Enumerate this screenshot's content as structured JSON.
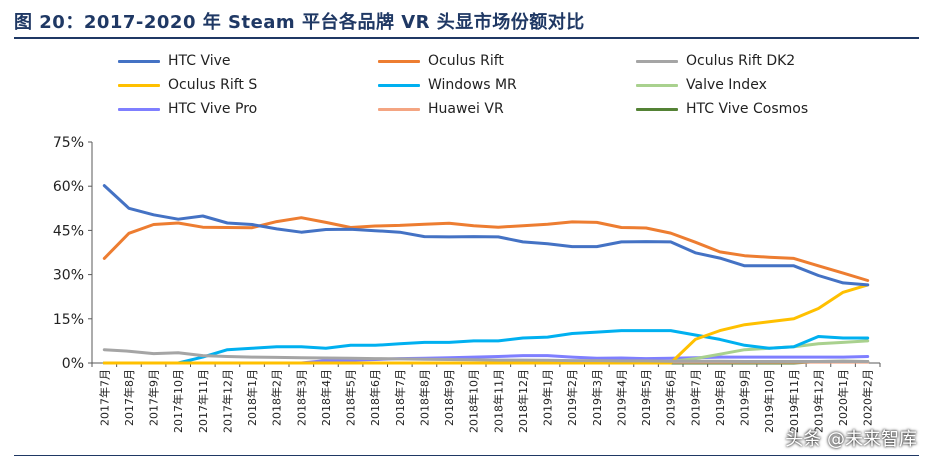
{
  "header": {
    "title": "图 20：2017-2020 年 Steam 平台各品牌 VR 头显市场份额对比"
  },
  "watermark": "头条 @未来智库",
  "chart_data": {
    "type": "line",
    "title": "2017-2020 年 Steam 平台各品牌 VR 头显市场份额对比",
    "xlabel": "",
    "ylabel": "",
    "ylim": [
      0,
      75
    ],
    "yticks": [
      "0%",
      "15%",
      "30%",
      "45%",
      "60%",
      "75%"
    ],
    "ytick_values": [
      0,
      15,
      30,
      45,
      60,
      75
    ],
    "grid": false,
    "legend_position": "top",
    "categories": [
      "2017年7月",
      "2017年8月",
      "2017年9月",
      "2017年10月",
      "2017年11月",
      "2017年12月",
      "2018年1月",
      "2018年2月",
      "2018年3月",
      "2018年4月",
      "2018年5月",
      "2018年6月",
      "2018年7月",
      "2018年8月",
      "2018年9月",
      "2018年10月",
      "2018年11月",
      "2018年12月",
      "2019年1月",
      "2019年2月",
      "2019年3月",
      "2019年4月",
      "2019年5月",
      "2019年6月",
      "2019年7月",
      "2019年8月",
      "2019年9月",
      "2019年10月",
      "2019年11月",
      "2019年12月",
      "2020年1月",
      "2020年2月"
    ],
    "series": [
      {
        "name": "HTC Vive",
        "color": "#4472c4",
        "values": [
          60.2,
          52.5,
          50.3,
          48.8,
          49.9,
          47.5,
          47.0,
          45.5,
          44.4,
          45.3,
          45.4,
          44.9,
          44.4,
          42.9,
          42.8,
          42.9,
          42.8,
          41.1,
          40.5,
          39.5,
          39.5,
          41.1,
          41.2,
          41.1,
          37.4,
          35.6,
          33.0,
          33.0,
          33.0,
          29.7,
          27.2,
          26.5
        ]
      },
      {
        "name": "Oculus Rift",
        "color": "#ed7d31",
        "values": [
          35.5,
          44.0,
          47.0,
          47.5,
          46.1,
          46.0,
          45.9,
          48.0,
          49.3,
          47.7,
          46.0,
          46.5,
          46.7,
          47.1,
          47.4,
          46.6,
          46.1,
          46.6,
          47.1,
          47.9,
          47.7,
          46.0,
          45.8,
          44.1,
          41.0,
          37.7,
          36.4,
          35.9,
          35.5,
          33.0,
          30.5,
          28.0
        ]
      },
      {
        "name": "Oculus Rift DK2",
        "color": "#a5a5a5",
        "values": [
          4.5,
          4.0,
          3.2,
          3.5,
          2.5,
          2.2,
          2.0,
          1.9,
          1.8,
          1.7,
          1.6,
          1.5,
          1.4,
          1.3,
          1.2,
          1.1,
          1.0,
          1.0,
          0.9,
          0.8,
          0.8,
          0.7,
          0.7,
          0.6,
          0.6,
          0.6,
          0.5,
          0.5,
          0.5,
          0.5,
          0.5,
          0.5
        ]
      },
      {
        "name": "Oculus Rift S",
        "color": "#ffc000",
        "values": [
          0,
          0,
          0,
          0,
          0,
          0,
          0,
          0,
          0,
          0,
          0,
          0,
          0,
          0,
          0,
          0,
          0,
          0,
          0,
          0,
          0,
          0,
          0,
          0,
          8.0,
          11.0,
          13.0,
          14.0,
          15.0,
          18.5,
          24.0,
          26.5
        ]
      },
      {
        "name": "Windows MR",
        "color": "#00b0f0",
        "values": [
          0,
          0,
          0,
          0,
          2.0,
          4.5,
          5.0,
          5.5,
          5.5,
          5.0,
          6.0,
          6.0,
          6.5,
          7.0,
          7.0,
          7.5,
          7.5,
          8.5,
          8.8,
          10.0,
          10.5,
          11.0,
          11.0,
          11.0,
          9.5,
          8.0,
          6.0,
          5.0,
          5.5,
          9.0,
          8.5,
          8.5
        ]
      },
      {
        "name": "Valve Index",
        "color": "#a9d18e",
        "values": [
          0,
          0,
          0,
          0,
          0,
          0,
          0,
          0,
          0,
          0,
          0,
          0,
          0,
          0,
          0,
          0,
          0,
          0,
          0,
          0,
          0,
          0,
          0,
          0.5,
          1.5,
          3.0,
          4.5,
          5.0,
          5.5,
          6.5,
          7.0,
          7.5
        ]
      },
      {
        "name": "HTC Vive Pro",
        "color": "#7f7fff",
        "values": [
          0,
          0,
          0,
          0,
          0,
          0,
          0,
          0,
          0,
          0.8,
          1.0,
          1.2,
          1.5,
          1.6,
          1.8,
          2.0,
          2.2,
          2.5,
          2.5,
          2.0,
          1.6,
          1.7,
          1.5,
          1.6,
          1.8,
          2.0,
          2.0,
          2.0,
          2.0,
          2.0,
          2.0,
          2.2
        ]
      },
      {
        "name": "Huawei VR",
        "color": "#f4a582",
        "values": [
          0,
          0,
          0,
          0,
          0,
          0,
          0,
          0,
          0,
          0,
          0,
          0,
          0,
          0,
          0,
          0,
          0,
          0,
          0.3,
          0.3,
          0.3,
          0.3,
          0.3,
          0.3,
          0.3,
          0.3,
          0.3,
          0.3,
          0.3,
          0.3,
          0.3,
          0.3
        ]
      },
      {
        "name": "HTC Vive Cosmos",
        "color": "#548235",
        "values": [
          0,
          0,
          0,
          0,
          0,
          0,
          0,
          0,
          0,
          0,
          0,
          0,
          0,
          0,
          0,
          0,
          0,
          0,
          0,
          0,
          0,
          0,
          0,
          0,
          0,
          0,
          0,
          0,
          0,
          0.5,
          0.6,
          0.5
        ]
      }
    ]
  }
}
